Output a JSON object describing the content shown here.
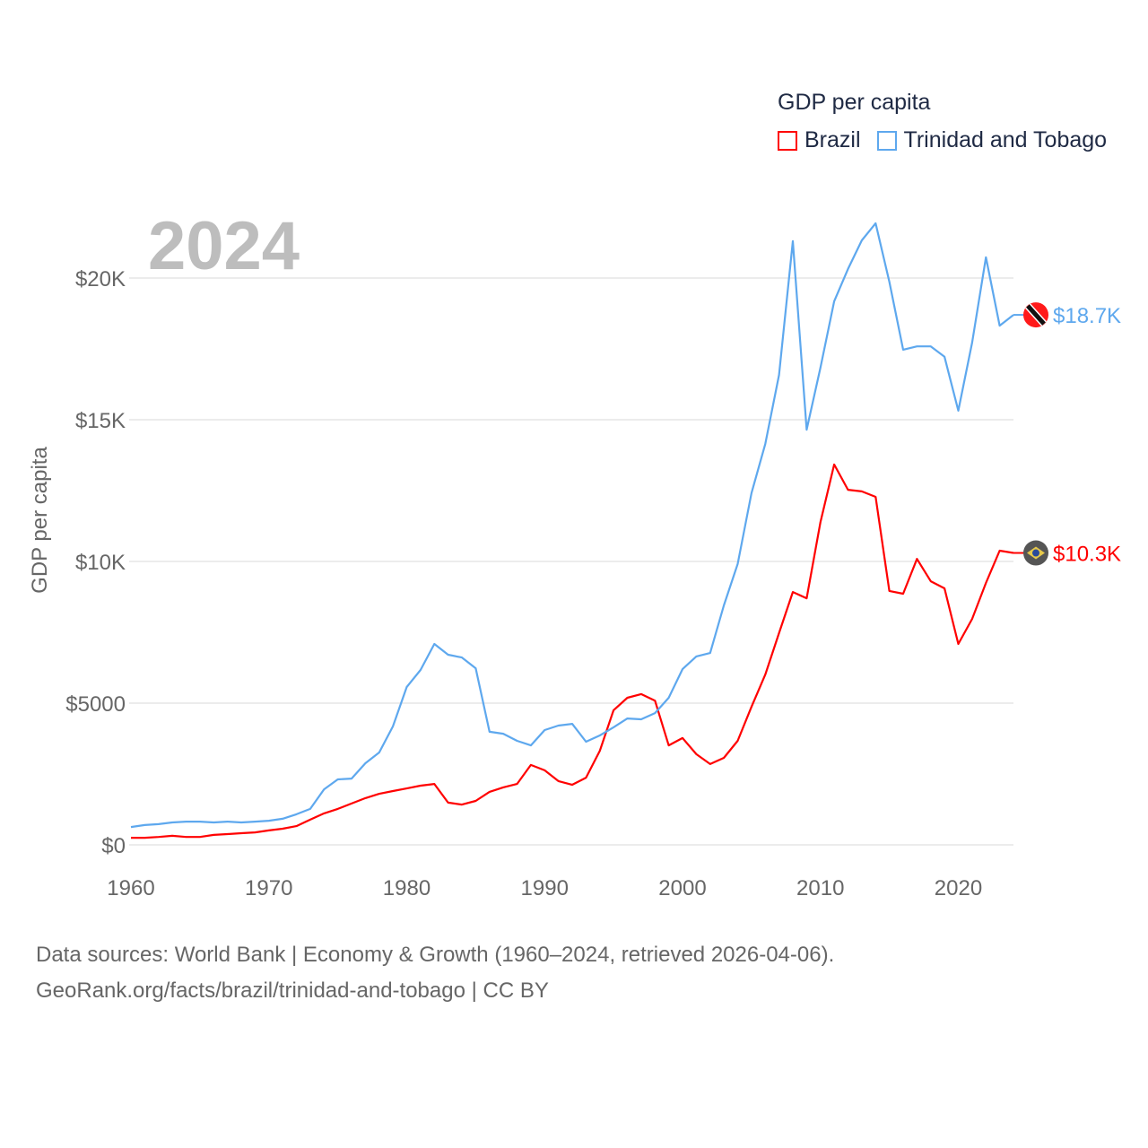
{
  "chart_data": {
    "type": "line",
    "title": "GDP per capita",
    "year_label": "2024",
    "xlabel": "",
    "ylabel": "GDP per capita",
    "xlim": [
      1960,
      2024
    ],
    "ylim": [
      0,
      22000
    ],
    "x_ticks": [
      1960,
      1970,
      1980,
      1990,
      2000,
      2010,
      2020
    ],
    "x_tick_labels": [
      "1960",
      "1970",
      "1980",
      "1990",
      "2000",
      "2010",
      "2020"
    ],
    "y_ticks": [
      0,
      5000,
      10000,
      15000,
      20000
    ],
    "y_tick_labels": [
      "$0",
      "$5000",
      "$10K",
      "$15K",
      "$20K"
    ],
    "grid": true,
    "legend_position": "top-right",
    "x": [
      1960,
      1961,
      1962,
      1963,
      1964,
      1965,
      1966,
      1967,
      1968,
      1969,
      1970,
      1971,
      1972,
      1973,
      1974,
      1975,
      1976,
      1977,
      1978,
      1979,
      1980,
      1981,
      1982,
      1983,
      1984,
      1985,
      1986,
      1987,
      1988,
      1989,
      1990,
      1991,
      1992,
      1993,
      1994,
      1995,
      1996,
      1997,
      1998,
      1999,
      2000,
      2001,
      2002,
      2003,
      2004,
      2005,
      2006,
      2007,
      2008,
      2009,
      2010,
      2011,
      2012,
      2013,
      2014,
      2015,
      2016,
      2017,
      2018,
      2019,
      2020,
      2021,
      2022,
      2023,
      2024
    ],
    "series": [
      {
        "name": "Brazil",
        "color": "#ff0000",
        "end_label": "$10.3K",
        "flag": "brazil",
        "values": [
          250,
          250,
          280,
          320,
          280,
          280,
          350,
          380,
          410,
          440,
          510,
          570,
          660,
          890,
          1110,
          1270,
          1460,
          1650,
          1800,
          1900,
          1990,
          2090,
          2150,
          1490,
          1420,
          1550,
          1870,
          2030,
          2150,
          2820,
          2630,
          2250,
          2120,
          2370,
          3320,
          4750,
          5190,
          5320,
          5090,
          3510,
          3770,
          3200,
          2850,
          3070,
          3670,
          4870,
          6010,
          7470,
          8920,
          8700,
          11390,
          13420,
          12530,
          12470,
          12280,
          8960,
          8860,
          10090,
          9300,
          9050,
          7090,
          7970,
          9240,
          10380,
          10300
        ]
      },
      {
        "name": "Trinidad and Tobago",
        "color": "#5ea8ee",
        "end_label": "$18.7K",
        "flag": "trinidad-and-tobago",
        "values": [
          630,
          700,
          730,
          790,
          820,
          820,
          790,
          820,
          790,
          820,
          850,
          920,
          1080,
          1270,
          1960,
          2310,
          2340,
          2880,
          3260,
          4180,
          5570,
          6170,
          7090,
          6710,
          6610,
          6230,
          3990,
          3920,
          3670,
          3510,
          4050,
          4210,
          4270,
          3640,
          3860,
          4150,
          4460,
          4430,
          4650,
          5190,
          6200,
          6650,
          6770,
          8450,
          9910,
          12410,
          14150,
          16580,
          21300,
          14650,
          16840,
          19180,
          20320,
          21330,
          21930,
          19870,
          17470,
          17590,
          17590,
          17220,
          15320,
          17720,
          20730,
          18320,
          18700
        ]
      }
    ]
  },
  "footer": {
    "line1": "Data sources: World Bank | Economy & Growth (1960–2024, retrieved 2026-04-06).",
    "line2": "GeoRank.org/facts/brazil/trinidad-and-tobago | CC BY"
  }
}
